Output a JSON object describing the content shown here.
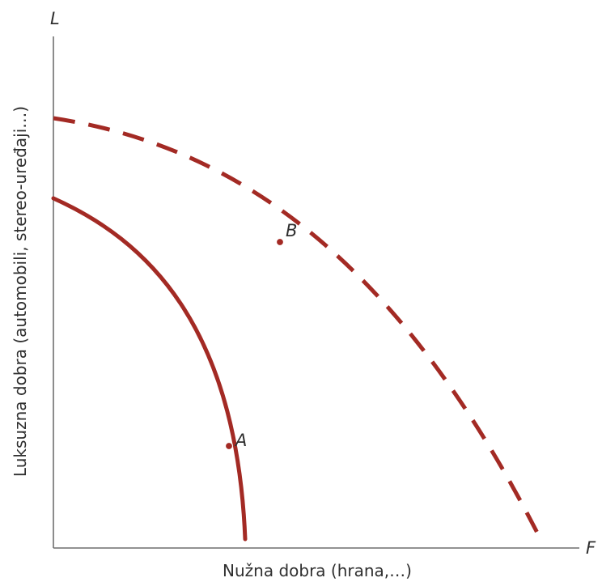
{
  "diagram": {
    "y_axis_letter": "L",
    "x_axis_letter": "F",
    "y_axis_title": "Luksuzna dobra (automobili, stereo-uređaji…)",
    "x_axis_title": "Nužna dobra (hrana,…)",
    "curves": [
      {
        "style": "solid",
        "color": "#a32a24"
      },
      {
        "style": "dashed",
        "color": "#a32a24"
      }
    ],
    "points": [
      {
        "label": "A"
      },
      {
        "label": "B"
      }
    ]
  }
}
